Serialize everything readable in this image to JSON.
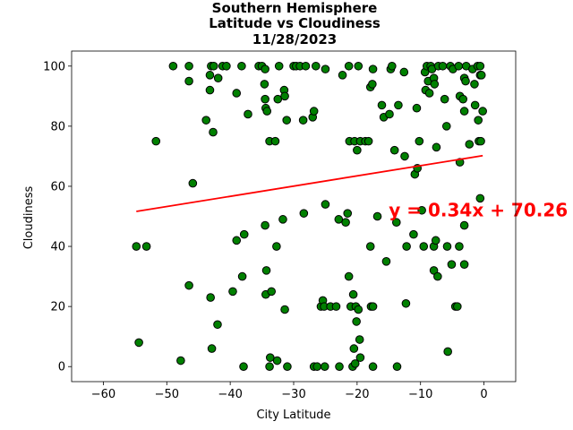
{
  "chart_data": {
    "type": "scatter",
    "title_lines": [
      "Southern Hemisphere",
      "Latitude vs Cloudiness",
      "11/28/2023"
    ],
    "xlabel": "City Latitude",
    "ylabel": "Cloudiness",
    "xlim": [
      -65,
      5
    ],
    "ylim": [
      -5,
      105
    ],
    "xticks": [
      -60,
      -50,
      -40,
      -30,
      -20,
      -10,
      0
    ],
    "yticks": [
      0,
      20,
      40,
      60,
      80,
      100
    ],
    "grid": false,
    "marker_color": "#008000",
    "marker_edge_color": "#000000",
    "regression": {
      "slope": 0.34,
      "intercept": 70.26,
      "x_range": [
        -54.8,
        -0.2
      ],
      "color": "#ff0000",
      "equation_label": "y = 0.34x + 70.26",
      "label_x": -15,
      "label_y": 50
    },
    "points": [
      [
        -54.8,
        40
      ],
      [
        -53.2,
        40
      ],
      [
        -54.4,
        8
      ],
      [
        -51.7,
        75
      ],
      [
        -49,
        100
      ],
      [
        -47.8,
        2
      ],
      [
        -46.5,
        100
      ],
      [
        -46.5,
        95
      ],
      [
        -46.5,
        27
      ],
      [
        -45.9,
        61
      ],
      [
        -43.8,
        82
      ],
      [
        -43.2,
        92
      ],
      [
        -43.2,
        97
      ],
      [
        -43,
        100
      ],
      [
        -42.6,
        100
      ],
      [
        -42.9,
        6
      ],
      [
        -43.1,
        23
      ],
      [
        -42.7,
        78
      ],
      [
        -41.9,
        96
      ],
      [
        -42,
        14
      ],
      [
        -41.2,
        100
      ],
      [
        -40.6,
        100
      ],
      [
        -39.6,
        25
      ],
      [
        -39,
        91
      ],
      [
        -39,
        42
      ],
      [
        -38.2,
        100
      ],
      [
        -38.1,
        30
      ],
      [
        -37.8,
        44
      ],
      [
        -37.2,
        84
      ],
      [
        -37.9,
        0
      ],
      [
        -35.5,
        100
      ],
      [
        -35,
        100
      ],
      [
        -34.5,
        99
      ],
      [
        -34.5,
        89
      ],
      [
        -34.6,
        94
      ],
      [
        -34.4,
        86
      ],
      [
        -34.2,
        85
      ],
      [
        -34.5,
        47
      ],
      [
        -34.3,
        32
      ],
      [
        -34.4,
        24
      ],
      [
        -33.8,
        75
      ],
      [
        -33.7,
        3
      ],
      [
        -33.8,
        0
      ],
      [
        -33.5,
        25
      ],
      [
        -32.9,
        75
      ],
      [
        -32.7,
        40
      ],
      [
        -32.6,
        2
      ],
      [
        -32.5,
        89
      ],
      [
        -32.3,
        100
      ],
      [
        -31.5,
        92
      ],
      [
        -31.4,
        90
      ],
      [
        -31.7,
        49
      ],
      [
        -31.4,
        19
      ],
      [
        -31.1,
        82
      ],
      [
        -31,
        0
      ],
      [
        -30,
        100
      ],
      [
        -29.6,
        100
      ],
      [
        -29,
        100
      ],
      [
        -28.5,
        82
      ],
      [
        -28.4,
        51
      ],
      [
        -28.1,
        100
      ],
      [
        -27,
        83
      ],
      [
        -26.8,
        85
      ],
      [
        -26.8,
        0
      ],
      [
        -26.5,
        100
      ],
      [
        -26.3,
        0
      ],
      [
        -25.7,
        20
      ],
      [
        -25.4,
        22
      ],
      [
        -25.2,
        20
      ],
      [
        -25,
        99
      ],
      [
        -25,
        54
      ],
      [
        -25.1,
        0
      ],
      [
        -24.2,
        20
      ],
      [
        -23.3,
        20
      ],
      [
        -22.9,
        49
      ],
      [
        -22.8,
        0
      ],
      [
        -22.3,
        97
      ],
      [
        -21.8,
        48
      ],
      [
        -21.5,
        51
      ],
      [
        -21.3,
        100
      ],
      [
        -21.2,
        75
      ],
      [
        -21.3,
        30
      ],
      [
        -21,
        20
      ],
      [
        -20.7,
        0
      ],
      [
        -20.4,
        75
      ],
      [
        -20.6,
        24
      ],
      [
        -20.5,
        6
      ],
      [
        -20.3,
        1
      ],
      [
        -20.2,
        20
      ],
      [
        -20.1,
        15
      ],
      [
        -20,
        72
      ],
      [
        -19.8,
        19
      ],
      [
        -19.8,
        100
      ],
      [
        -19.6,
        9
      ],
      [
        -19.5,
        3
      ],
      [
        -19.5,
        75
      ],
      [
        -18.7,
        75
      ],
      [
        -18.2,
        75
      ],
      [
        -17.9,
        93
      ],
      [
        -17.6,
        94
      ],
      [
        -17.5,
        99
      ],
      [
        -17.9,
        40
      ],
      [
        -17.8,
        20
      ],
      [
        -17.5,
        20
      ],
      [
        -17.5,
        0
      ],
      [
        -16.8,
        50
      ],
      [
        -16.1,
        87
      ],
      [
        -15.8,
        83
      ],
      [
        -15.4,
        35
      ],
      [
        -14.9,
        84
      ],
      [
        -14.7,
        99
      ],
      [
        -14.5,
        100
      ],
      [
        -14.1,
        72
      ],
      [
        -13.8,
        48
      ],
      [
        -13.7,
        0
      ],
      [
        -13.5,
        87
      ],
      [
        -12.6,
        98
      ],
      [
        -12.5,
        70
      ],
      [
        -12.3,
        21
      ],
      [
        -12.2,
        40
      ],
      [
        -11.1,
        44
      ],
      [
        -10.9,
        64
      ],
      [
        -10.6,
        86
      ],
      [
        -10.5,
        66
      ],
      [
        -10.2,
        75
      ],
      [
        -9.8,
        52
      ],
      [
        -9.5,
        40
      ],
      [
        -9.3,
        98
      ],
      [
        -9.2,
        92
      ],
      [
        -9,
        100
      ],
      [
        -8.8,
        95
      ],
      [
        -8.6,
        91
      ],
      [
        -8.4,
        100
      ],
      [
        -8.2,
        99
      ],
      [
        -7.9,
        96
      ],
      [
        -7.8,
        94
      ],
      [
        -7.9,
        32
      ],
      [
        -7.9,
        40
      ],
      [
        -7.6,
        42
      ],
      [
        -7.5,
        73
      ],
      [
        -7.3,
        30
      ],
      [
        -7.2,
        100
      ],
      [
        -6.5,
        100
      ],
      [
        -6.2,
        89
      ],
      [
        -5.9,
        80
      ],
      [
        -5.8,
        40
      ],
      [
        -5.7,
        5
      ],
      [
        -5.3,
        100
      ],
      [
        -5.1,
        34
      ],
      [
        -4.9,
        99
      ],
      [
        -4.5,
        20
      ],
      [
        -4.2,
        20
      ],
      [
        -4,
        100
      ],
      [
        -3.8,
        90
      ],
      [
        -3.9,
        40
      ],
      [
        -3.8,
        68
      ],
      [
        -3.3,
        89
      ],
      [
        -3.1,
        85
      ],
      [
        -3.1,
        96
      ],
      [
        -2.9,
        95
      ],
      [
        -3.1,
        47
      ],
      [
        -3.1,
        34
      ],
      [
        -2.8,
        100
      ],
      [
        -2.3,
        74
      ],
      [
        -1.8,
        99
      ],
      [
        -1.5,
        94
      ],
      [
        -1.4,
        87
      ],
      [
        -1,
        100
      ],
      [
        -0.9,
        82
      ],
      [
        -0.8,
        75
      ],
      [
        -0.6,
        100
      ],
      [
        -0.6,
        97
      ],
      [
        -0.6,
        56
      ],
      [
        -0.5,
        75
      ],
      [
        -0.4,
        97
      ],
      [
        -0.2,
        85
      ]
    ]
  }
}
